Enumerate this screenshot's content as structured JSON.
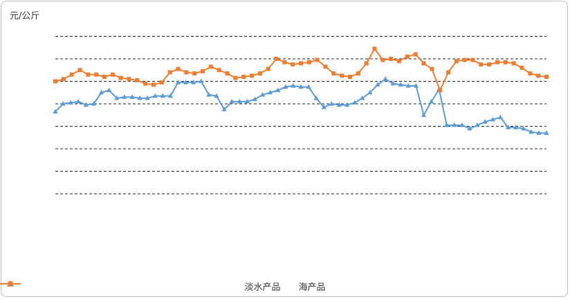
{
  "chart_data": {
    "type": "line",
    "ylabel": "元/公斤",
    "ylim": [
      0,
      8
    ],
    "grid": true,
    "legend_position": "bottom",
    "series": [
      {
        "name": "淡水产品",
        "color": "#5b9bd5",
        "marker": "triangle",
        "values": [
          3.65,
          4.0,
          4.05,
          4.1,
          3.95,
          4.0,
          4.5,
          4.6,
          4.25,
          4.3,
          4.3,
          4.25,
          4.25,
          4.35,
          4.35,
          4.35,
          4.95,
          4.95,
          4.95,
          5.0,
          4.4,
          4.35,
          3.75,
          4.1,
          4.1,
          4.1,
          4.2,
          4.4,
          4.5,
          4.6,
          4.75,
          4.8,
          4.75,
          4.75,
          4.25,
          3.85,
          4.0,
          3.95,
          3.95,
          4.05,
          4.25,
          4.5,
          4.85,
          5.1,
          4.9,
          4.85,
          4.8,
          4.8,
          3.5,
          4.1,
          4.65,
          3.05,
          3.05,
          3.05,
          2.9,
          3.05,
          3.2,
          3.3,
          3.4,
          2.95,
          2.95,
          2.9,
          2.75,
          2.7,
          2.7
        ]
      },
      {
        "name": "海产品",
        "color": "#ed7d31",
        "marker": "square",
        "values": [
          5.0,
          5.1,
          5.3,
          5.5,
          5.3,
          5.3,
          5.2,
          5.3,
          5.15,
          5.1,
          5.05,
          4.9,
          4.85,
          4.95,
          5.4,
          5.55,
          5.4,
          5.35,
          5.45,
          5.65,
          5.5,
          5.35,
          5.15,
          5.2,
          5.25,
          5.35,
          5.55,
          6.0,
          5.85,
          5.75,
          5.8,
          5.85,
          5.95,
          5.65,
          5.35,
          5.25,
          5.2,
          5.35,
          5.8,
          6.45,
          5.95,
          6.0,
          5.9,
          6.1,
          6.2,
          5.8,
          5.55,
          4.6,
          5.4,
          5.9,
          5.95,
          5.95,
          5.75,
          5.75,
          5.85,
          5.85,
          5.8,
          5.6,
          5.35,
          5.25,
          5.2
        ]
      }
    ]
  }
}
